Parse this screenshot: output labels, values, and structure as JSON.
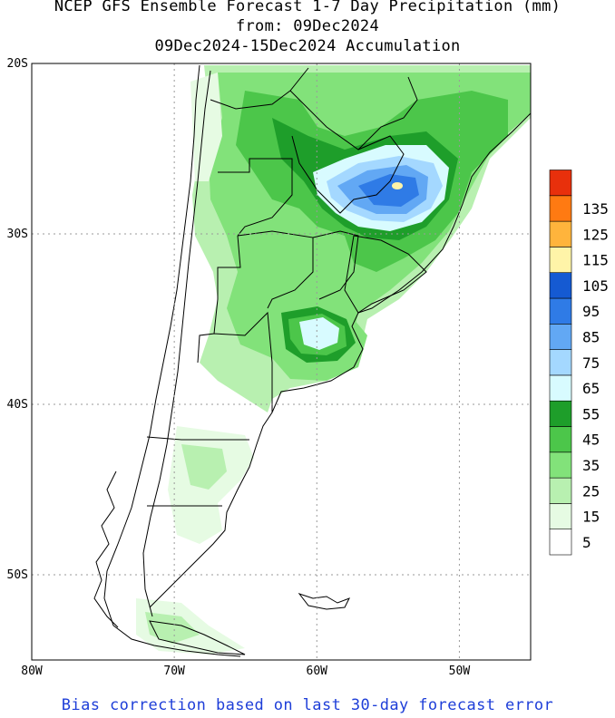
{
  "header": {
    "title_line1": "NCEP GFS Ensemble Forecast 1-7 Day Precipitation (mm)",
    "title_line2": "from: 09Dec2024",
    "title_line3": "09Dec2024-15Dec2024 Accumulation"
  },
  "footer": {
    "note": "Bias correction based on last 30-day forecast error"
  },
  "map": {
    "lat_labels": [
      "20S",
      "30S",
      "40S",
      "50S"
    ],
    "lon_labels": [
      "80W",
      "70W",
      "60W",
      "50W"
    ],
    "lat_values": [
      -20,
      -30,
      -40,
      -50
    ],
    "lon_values": [
      -80,
      -70,
      -60,
      -50
    ],
    "extent": {
      "lon_min": -80,
      "lon_max": -45,
      "lat_min": -55,
      "lat_max": -20
    },
    "grid": "dotted",
    "projection": "lat-lon"
  },
  "legend": {
    "placement": "right",
    "bins": [
      {
        "label": "5",
        "color": "#ffffff"
      },
      {
        "label": "15",
        "color": "#e6fbe3"
      },
      {
        "label": "25",
        "color": "#b8f0b0"
      },
      {
        "label": "35",
        "color": "#82e27a"
      },
      {
        "label": "45",
        "color": "#4cc64a"
      },
      {
        "label": "55",
        "color": "#1e9e2a"
      },
      {
        "label": "65",
        "color": "#d8fbff"
      },
      {
        "label": "75",
        "color": "#a4d8ff"
      },
      {
        "label": "85",
        "color": "#62a8f4"
      },
      {
        "label": "95",
        "color": "#2f7be6"
      },
      {
        "label": "105",
        "color": "#155ad2"
      },
      {
        "label": "115",
        "color": "#fff4a8"
      },
      {
        "label": "125",
        "color": "#ffb43c"
      },
      {
        "label": "135",
        "color": "#ff7a12"
      },
      {
        "label": "",
        "color": "#e8300c"
      }
    ]
  },
  "colors": {
    "grid": "#9a9a9a",
    "border": "#000000",
    "footer_text": "#1e3ed8"
  }
}
